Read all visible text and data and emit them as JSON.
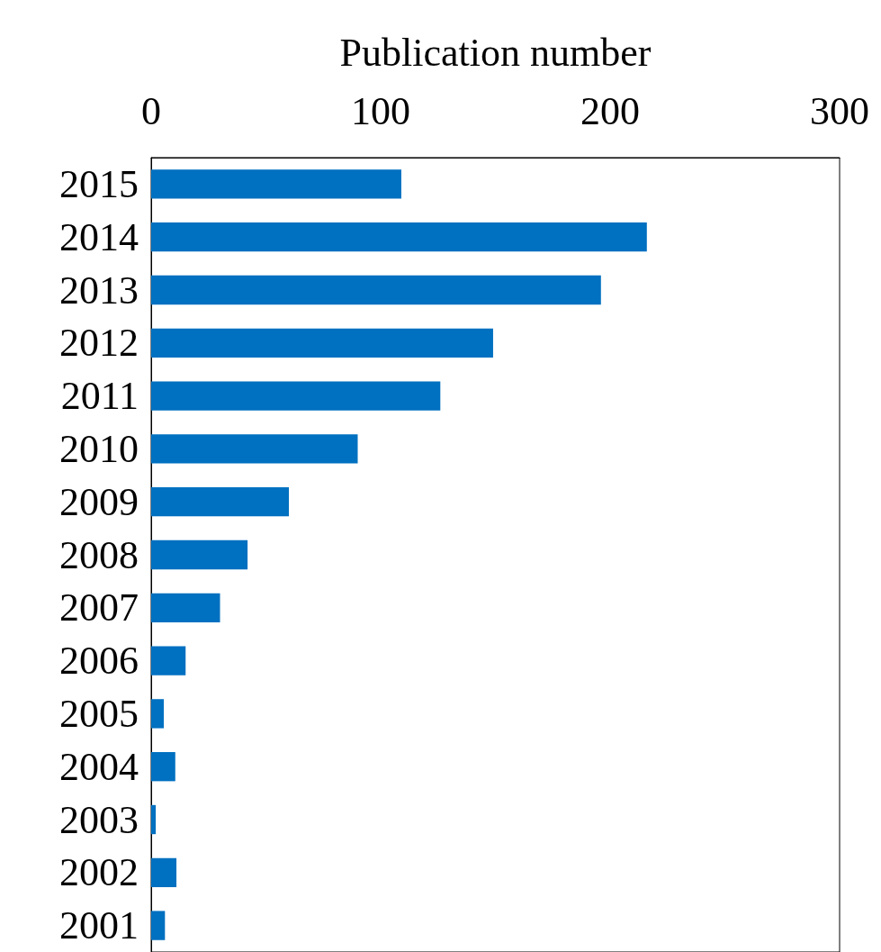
{
  "chart_data": {
    "type": "bar",
    "orientation": "horizontal",
    "xlabel": "Publication number",
    "categories": [
      "2015",
      "2014",
      "2013",
      "2012",
      "2011",
      "2010",
      "2009",
      "2008",
      "2007",
      "2006",
      "2005",
      "2004",
      "2003",
      "2002",
      "2001"
    ],
    "values": [
      109,
      216,
      196,
      149,
      126,
      90,
      60,
      42,
      30,
      15,
      5.5,
      10.5,
      2,
      11,
      6
    ],
    "color": "#0070c0",
    "xlim": [
      0,
      300
    ],
    "xticks": [
      0,
      100,
      200,
      300
    ],
    "grid": false
  }
}
